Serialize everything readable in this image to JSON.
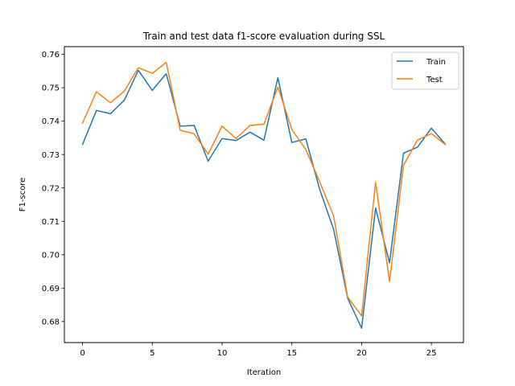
{
  "chart_data": {
    "type": "line",
    "title": "Train and test data f1-score evaluation during SSL",
    "xlabel": "Iteration",
    "ylabel": "F1-score",
    "xlim": [
      -1.3,
      27.3
    ],
    "ylim": [
      0.6737,
      0.7623
    ],
    "xticks": [
      0,
      5,
      10,
      15,
      20,
      25
    ],
    "xtick_labels": [
      "0",
      "5",
      "10",
      "15",
      "20",
      "25"
    ],
    "yticks": [
      0.68,
      0.69,
      0.7,
      0.71,
      0.72,
      0.73,
      0.74,
      0.75,
      0.76
    ],
    "ytick_labels": [
      "0.68",
      "0.69",
      "0.70",
      "0.71",
      "0.72",
      "0.73",
      "0.74",
      "0.75",
      "0.76"
    ],
    "grid": false,
    "legend_position": "top-right",
    "x": [
      0,
      1,
      2,
      3,
      4,
      5,
      6,
      7,
      8,
      9,
      10,
      11,
      12,
      13,
      14,
      15,
      16,
      17,
      18,
      19,
      20,
      21,
      22,
      23,
      24,
      25,
      26
    ],
    "series": [
      {
        "name": "Train",
        "color": "#1f77b4",
        "values": [
          0.733,
          0.7432,
          0.7422,
          0.7463,
          0.7552,
          0.7492,
          0.7542,
          0.7385,
          0.7387,
          0.728,
          0.7348,
          0.7342,
          0.7367,
          0.7343,
          0.753,
          0.7336,
          0.7347,
          0.7195,
          0.7075,
          0.687,
          0.678,
          0.714,
          0.6976,
          0.7304,
          0.7322,
          0.7379,
          0.7331
        ]
      },
      {
        "name": "Test",
        "color": "#ff7f0e",
        "values": [
          0.7394,
          0.7488,
          0.7455,
          0.749,
          0.756,
          0.7543,
          0.7576,
          0.7373,
          0.7362,
          0.7301,
          0.7385,
          0.7348,
          0.7387,
          0.7391,
          0.7502,
          0.7375,
          0.7315,
          0.7218,
          0.7115,
          0.6873,
          0.6817,
          0.7217,
          0.692,
          0.7268,
          0.7343,
          0.7363,
          0.733
        ]
      }
    ]
  }
}
